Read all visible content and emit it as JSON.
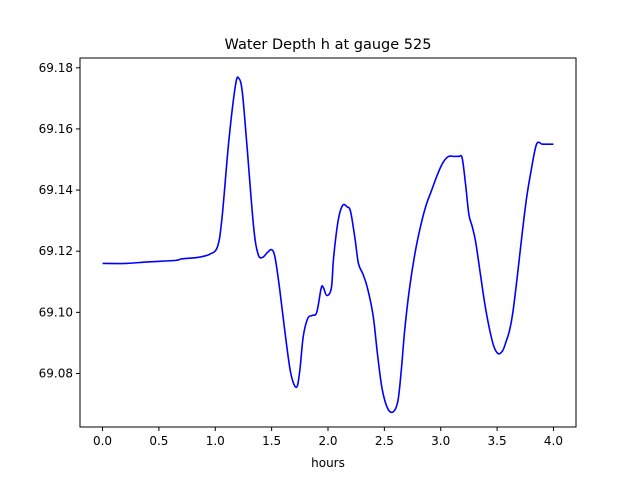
{
  "chart_data": {
    "type": "line",
    "title": "Water Depth h at gauge 525",
    "xlabel": "hours",
    "ylabel": "",
    "xlim": [
      -0.2,
      4.2
    ],
    "ylim": [
      69.0625,
      69.1832
    ],
    "xticks": [
      0.0,
      0.5,
      1.0,
      1.5,
      2.0,
      2.5,
      3.0,
      3.5,
      4.0
    ],
    "xtick_labels": [
      "0.0",
      "0.5",
      "1.0",
      "1.5",
      "2.0",
      "2.5",
      "3.0",
      "3.5",
      "4.0"
    ],
    "yticks": [
      69.08,
      69.1,
      69.12,
      69.14,
      69.16,
      69.18
    ],
    "ytick_labels": [
      "69.08",
      "69.10",
      "69.12",
      "69.14",
      "69.16",
      "69.18"
    ],
    "grid": false,
    "series": [
      {
        "color": "#0000ff",
        "x": [
          0.0,
          0.2,
          0.4,
          0.65,
          0.7,
          0.85,
          0.95,
          1.02,
          1.06,
          1.12,
          1.18,
          1.21,
          1.24,
          1.28,
          1.34,
          1.38,
          1.42,
          1.46,
          1.5,
          1.53,
          1.57,
          1.62,
          1.67,
          1.72,
          1.75,
          1.78,
          1.82,
          1.86,
          1.9,
          1.94,
          1.96,
          1.99,
          2.03,
          2.05,
          2.09,
          2.13,
          2.17,
          2.2,
          2.24,
          2.27,
          2.31,
          2.35,
          2.4,
          2.44,
          2.48,
          2.53,
          2.58,
          2.62,
          2.65,
          2.68,
          2.72,
          2.77,
          2.82,
          2.87,
          2.92,
          2.97,
          3.02,
          3.07,
          3.12,
          3.16,
          3.19,
          3.22,
          3.25,
          3.28,
          3.31,
          3.35,
          3.39,
          3.43,
          3.47,
          3.51,
          3.55,
          3.58,
          3.61,
          3.64,
          3.68,
          3.72,
          3.76,
          3.8,
          3.85,
          3.9,
          3.95,
          4.0
        ],
        "y": [
          69.116,
          69.116,
          69.1165,
          69.117,
          69.1175,
          69.118,
          69.119,
          69.1215,
          69.131,
          69.156,
          69.1745,
          69.1765,
          69.172,
          69.155,
          69.128,
          69.119,
          69.118,
          69.1195,
          69.1205,
          69.118,
          69.108,
          69.093,
          69.08,
          69.0755,
          69.081,
          69.092,
          69.098,
          69.099,
          69.1,
          69.108,
          69.108,
          69.1055,
          69.108,
          69.118,
          69.13,
          69.135,
          69.1345,
          69.133,
          69.124,
          69.116,
          69.1125,
          69.108,
          69.099,
          69.086,
          69.075,
          69.0685,
          69.0675,
          69.071,
          69.081,
          69.094,
          69.107,
          69.119,
          69.128,
          69.135,
          69.14,
          69.145,
          69.149,
          69.151,
          69.151,
          69.151,
          69.1505,
          69.142,
          69.132,
          69.128,
          69.123,
          69.113,
          69.103,
          69.095,
          69.089,
          69.0865,
          69.0875,
          69.0905,
          69.094,
          69.1,
          69.112,
          69.125,
          69.137,
          69.146,
          69.155,
          69.155,
          69.155,
          69.155
        ]
      }
    ]
  }
}
